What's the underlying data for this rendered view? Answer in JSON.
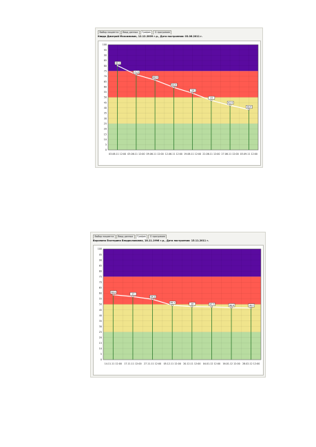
{
  "screens": [
    {
      "tabs": [
        "Выбор пациента",
        "Ввод данных",
        "График",
        "О программе"
      ],
      "active_tab": 2,
      "title": "Квидо Дмитрий Максимович, 12.12.2009 г.р., Дата построения: 03.06.2011 г.",
      "chart_data": {
        "type": "line",
        "categories": [
          "03.06.11 12:00",
          "05.06.11 12:00",
          "09.06.11 12:00",
          "12.06.11 12:00",
          "19.06.11 12:00",
          "22.06.11 12:00",
          "27.06.11 12:00",
          "03.09.11 12:00"
        ],
        "values": [
          80.1,
          71.5,
          66.4,
          59.4,
          54.0,
          47.0,
          42.4,
          38.4
        ],
        "value_labels": [
          "80.1",
          "71.5",
          "66.4",
          "59.4",
          "54",
          "47",
          "42.4",
          "38.4"
        ],
        "ylim": [
          0,
          100
        ],
        "yticks": [
          0,
          5,
          10,
          15,
          20,
          25,
          30,
          35,
          40,
          45,
          50,
          55,
          60,
          65,
          70,
          75,
          80,
          85,
          90,
          95,
          100
        ],
        "bands": [
          {
            "from": 0,
            "to": 25,
            "color": "#b8dca0"
          },
          {
            "from": 25,
            "to": 50,
            "color": "#f0e48c"
          },
          {
            "from": 50,
            "to": 75,
            "color": "#ff5a50"
          },
          {
            "from": 75,
            "to": 100,
            "color": "#5a0aa0"
          }
        ],
        "grid": true
      }
    },
    {
      "tabs": [
        "Выбор пациента",
        "Ввод данных",
        "График",
        "О программе"
      ],
      "active_tab": 2,
      "title": "Воронина Екатерина Владиславовна, 18.11.1996 г.р., Дата построения: 15.11.2011 г.",
      "chart_data": {
        "type": "line",
        "categories": [
          "14.11.11 12:00",
          "17.11.11 12:00",
          "27.11.11 12:00",
          "05.12.11 12:00",
          "20.12.11 12:00",
          "04.01.12 12:00",
          "16.01.12 12:00",
          "28.02.12 12:00"
        ],
        "values": [
          58.6,
          57.0,
          54.5,
          49.1,
          48.0,
          47.7,
          46.9,
          46.7
        ],
        "value_labels": [
          "58.6",
          "57",
          "54.5",
          "49.1",
          "48",
          "47.7",
          "46.9",
          "46.7"
        ],
        "ylim": [
          0,
          100
        ],
        "yticks": [
          0,
          5,
          10,
          15,
          20,
          25,
          30,
          35,
          40,
          45,
          50,
          55,
          60,
          65,
          70,
          75,
          80,
          85,
          90,
          95,
          100
        ],
        "bands": [
          {
            "from": 0,
            "to": 25,
            "color": "#b8dca0"
          },
          {
            "from": 25,
            "to": 50,
            "color": "#f0e48c"
          },
          {
            "from": 50,
            "to": 75,
            "color": "#ff5a50"
          },
          {
            "from": 75,
            "to": 100,
            "color": "#5a0aa0"
          }
        ],
        "grid": true
      }
    }
  ]
}
